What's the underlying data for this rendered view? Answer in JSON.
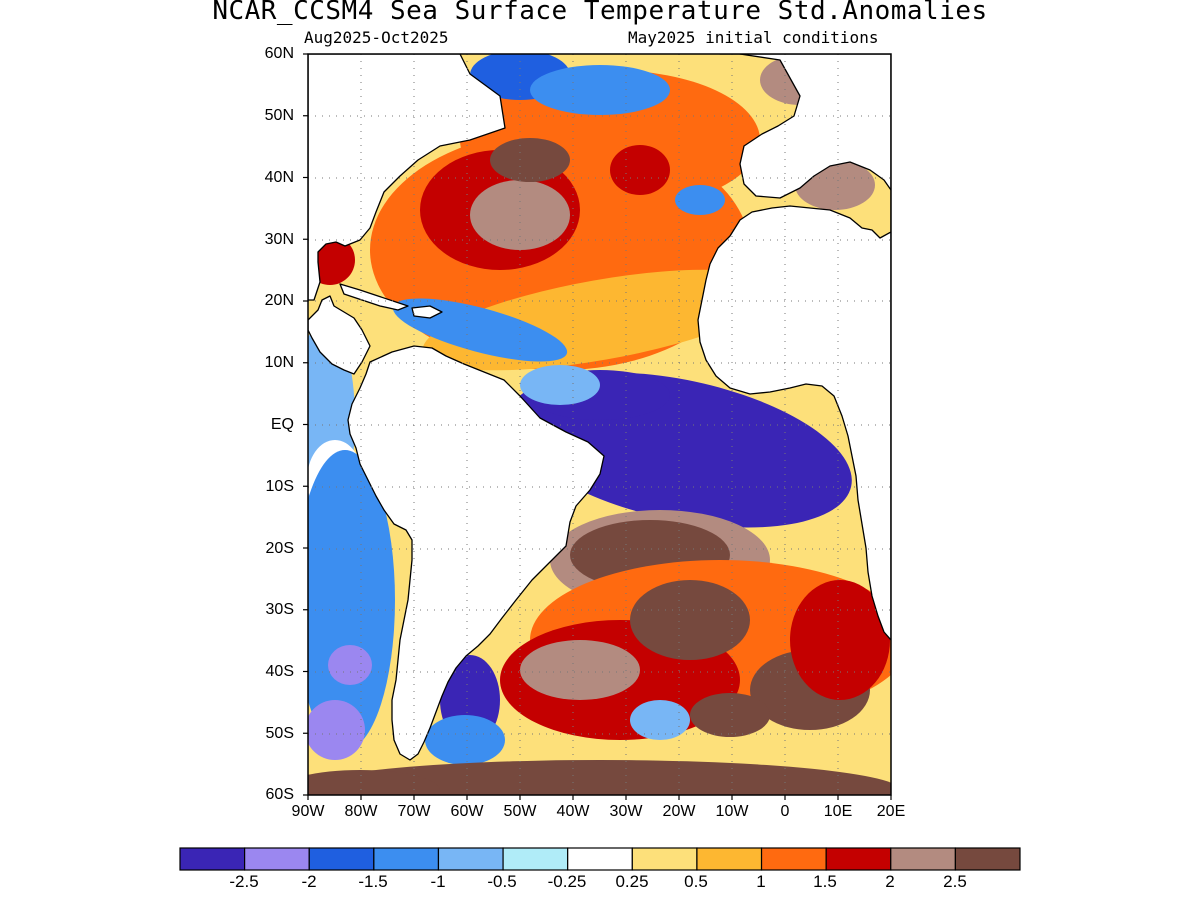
{
  "header": {
    "title": "NCAR_CCSM4 Sea Surface Temperature Std.Anomalies",
    "period": "Aug2025-Oct2025",
    "init": "May2025 initial conditions"
  },
  "axes": {
    "lat_ticks": [
      "60N",
      "50N",
      "40N",
      "30N",
      "20N",
      "10N",
      "EQ",
      "10S",
      "20S",
      "30S",
      "40S",
      "50S",
      "60S"
    ],
    "lon_ticks": [
      "90W",
      "80W",
      "70W",
      "60W",
      "50W",
      "40W",
      "30W",
      "20W",
      "10W",
      "0",
      "10E",
      "20E"
    ],
    "lon_range": [
      -90,
      20
    ],
    "lat_range": [
      -60,
      60
    ],
    "grid": "dotted"
  },
  "colorbar": {
    "colors": [
      "#3a25b5",
      "#9b87f0",
      "#1f5fe0",
      "#3c8ef0",
      "#78b6f5",
      "#b0ecf8",
      "#ffffff",
      "#fde07a",
      "#fdb731",
      "#ff6a10",
      "#c40000",
      "#b38b80",
      "#76493e"
    ],
    "labels": [
      "-2.5",
      "-2",
      "-1.5",
      "-1",
      "-0.5",
      "-0.25",
      "0.25",
      "0.5",
      "1",
      "1.5",
      "2",
      "2.5"
    ]
  },
  "chart_data": {
    "type": "heatmap",
    "title": "NCAR_CCSM4 Sea Surface Temperature Std.Anomalies",
    "subtitle_left": "Aug2025-Oct2025",
    "subtitle_right": "May2025 initial conditions",
    "x_range": [
      -90,
      20
    ],
    "y_range": [
      -60,
      60
    ],
    "levels": [
      -2.5,
      -2,
      -1.5,
      -1,
      -0.5,
      -0.25,
      0.25,
      0.5,
      1,
      1.5,
      2,
      2.5
    ],
    "regions": [
      {
        "name": "equatorial-east-atlantic-cold",
        "level": -3,
        "lon": [
          -40,
          10
        ],
        "lat": [
          -12,
          8
        ]
      },
      {
        "name": "north-atlantic-warm-core",
        "level": 2.2,
        "lon": [
          -70,
          -40
        ],
        "lat": [
          25,
          45
        ]
      },
      {
        "name": "south-atlantic-warm-core",
        "level": 2.7,
        "lon": [
          -40,
          -20
        ],
        "lat": [
          -35,
          -15
        ]
      },
      {
        "name": "southern-ocean-warm-band",
        "level": 2.8,
        "lon": [
          -90,
          20
        ],
        "lat": [
          -60,
          -55
        ]
      },
      {
        "name": "patagonian-shelf-cold",
        "level": -2.7,
        "lon": [
          -65,
          -55
        ],
        "lat": [
          -50,
          -40
        ]
      },
      {
        "name": "southeast-pacific-cold",
        "level": -1.2,
        "lon": [
          -90,
          -80
        ],
        "lat": [
          -55,
          -10
        ]
      }
    ]
  }
}
